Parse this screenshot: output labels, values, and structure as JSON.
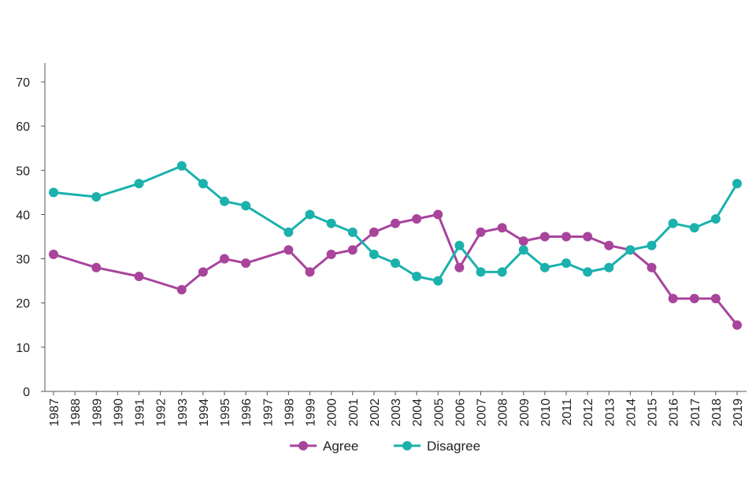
{
  "chart_data": {
    "type": "line",
    "title": "",
    "xlabel": "",
    "ylabel": "",
    "ylim": [
      0,
      70
    ],
    "yticks": [
      0,
      10,
      20,
      30,
      40,
      50,
      60,
      70
    ],
    "categories": [
      "1987",
      "1988",
      "1989",
      "1990",
      "1991",
      "1992",
      "1993",
      "1994",
      "1995",
      "1996",
      "1997",
      "1998",
      "1999",
      "2000",
      "2001",
      "2002",
      "2003",
      "2004",
      "2005",
      "2006",
      "2007",
      "2008",
      "2009",
      "2010",
      "2011",
      "2012",
      "2013",
      "2014",
      "2015",
      "2016",
      "2017",
      "2018",
      "2019"
    ],
    "grid": false,
    "legend_position": "bottom",
    "series": [
      {
        "name": "Agree",
        "color": "#a8449c",
        "values": [
          31,
          null,
          28,
          null,
          26,
          null,
          23,
          27,
          30,
          29,
          null,
          32,
          27,
          31,
          32,
          36,
          38,
          39,
          40,
          28,
          36,
          37,
          34,
          35,
          35,
          35,
          33,
          32,
          28,
          21,
          21,
          21,
          15
        ]
      },
      {
        "name": "Disagree",
        "color": "#1bb1ad",
        "values": [
          45,
          null,
          44,
          null,
          47,
          null,
          51,
          47,
          43,
          42,
          null,
          36,
          40,
          38,
          36,
          31,
          29,
          26,
          25,
          33,
          27,
          27,
          32,
          28,
          29,
          27,
          28,
          32,
          33,
          38,
          37,
          39,
          47
        ]
      }
    ]
  }
}
